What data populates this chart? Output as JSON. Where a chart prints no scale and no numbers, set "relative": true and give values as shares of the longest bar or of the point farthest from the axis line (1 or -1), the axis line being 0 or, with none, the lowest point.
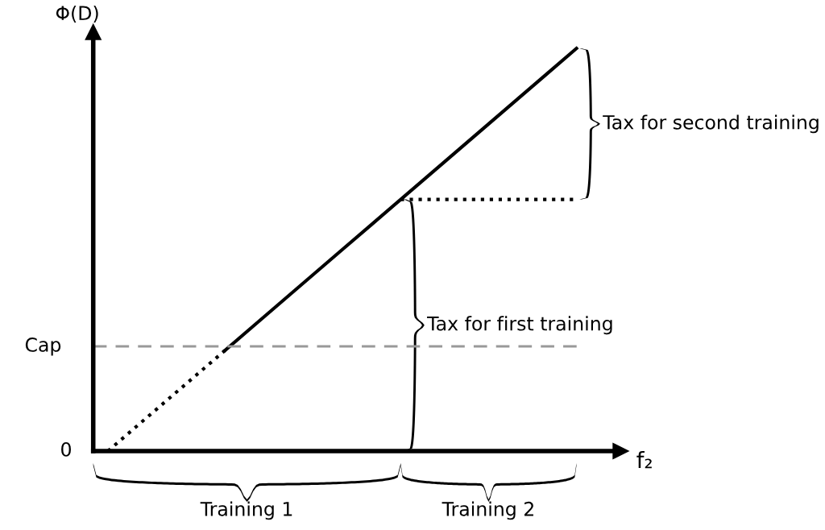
{
  "chart_data": {
    "type": "line",
    "relative": true,
    "categories": [
      null,
      null,
      null,
      null,
      null,
      null,
      null,
      null,
      null,
      null,
      null,
      null,
      null,
      null,
      null,
      null,
      null,
      null
    ],
    "series": [
      {
        "color": "#000000",
        "line_style": "dotted",
        "values": [
          0,
          0.0625,
          0.125,
          0.1875,
          0.25,
          null,
          null,
          null,
          null,
          null,
          null,
          null,
          null,
          null,
          null,
          null,
          null,
          null
        ]
      },
      {
        "color": "#000000",
        "line_style": "solid",
        "values": [
          null,
          null,
          null,
          null,
          0.25,
          0.3125,
          0.375,
          0.4375,
          0.5,
          0.5625,
          0.625,
          0.6875,
          0.75,
          0.8125,
          0.875,
          0.9375,
          1,
          null
        ]
      },
      {
        "color": "#000000",
        "line_style": "dotted",
        "values": [
          null,
          null,
          null,
          null,
          null,
          null,
          null,
          null,
          null,
          null,
          0.625,
          0.625,
          0.625,
          0.625,
          0.625,
          0.625,
          0.625,
          null
        ]
      }
    ],
    "ref_lines": [
      {
        "axis": "y",
        "value": 0.26,
        "label": "Cap",
        "color": "#999999",
        "line_style": "dashed"
      }
    ],
    "annotations": [
      "Φ(D)",
      "f₂",
      "0",
      "Tax for first training",
      "Tax for second training",
      "Training 1",
      "Training 2"
    ],
    "legend": false,
    "tick_labels": false
  }
}
